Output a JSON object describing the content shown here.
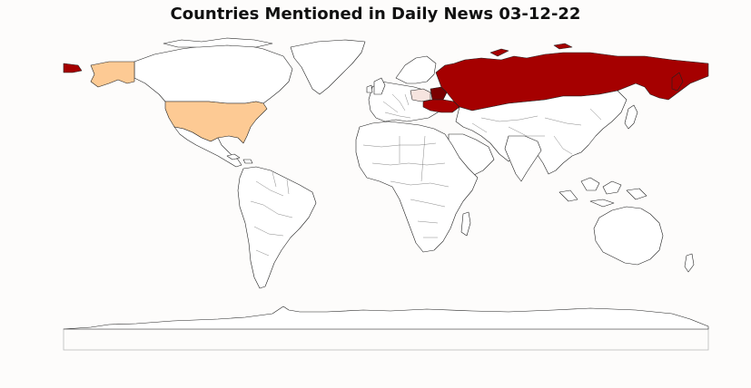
{
  "title": "Countries Mentioned in Daily News 03-12-22",
  "colors": {
    "background": "#fdfcfb",
    "land": "#ffffff",
    "border": "#444444",
    "frame": "#bbbbbb",
    "mentions_high": "#a50000",
    "mentions_high_dark": "#7a0000",
    "mentions_mid": "#fdca94",
    "mentions_low": "#f6e4df"
  },
  "highlighted_regions": [
    {
      "region": "russia",
      "level": "high"
    },
    {
      "region": "ukraine",
      "level": "high"
    },
    {
      "region": "belarus",
      "level": "high"
    },
    {
      "region": "poland",
      "level": "low"
    },
    {
      "region": "united-states",
      "level": "mid"
    }
  ]
}
